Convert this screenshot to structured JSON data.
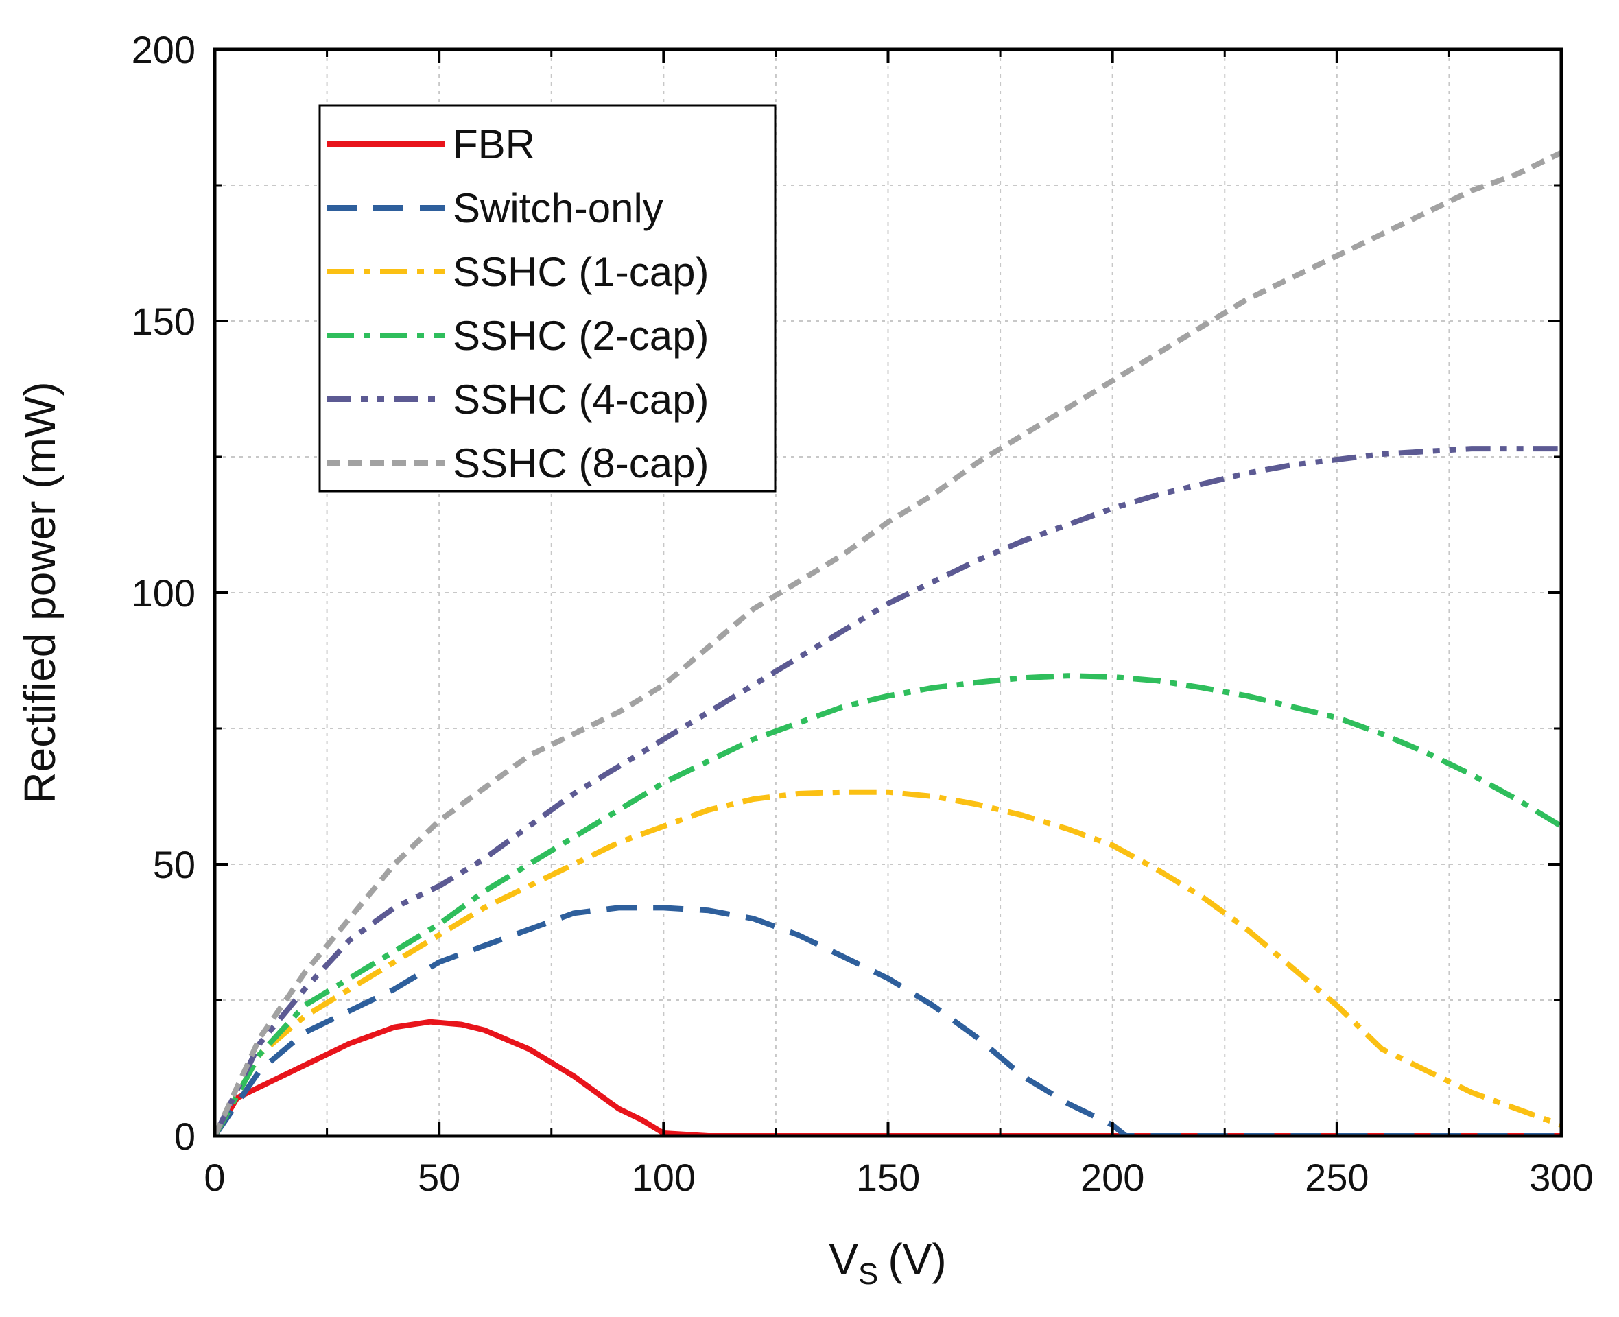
{
  "chart_data": {
    "type": "line",
    "title": "",
    "xlabel": "V",
    "xlabel_sub": "S",
    "xlabel_unit": "(V)",
    "ylabel": "Rectified power (mW)",
    "xlim": [
      0,
      300
    ],
    "ylim": [
      0,
      200
    ],
    "xticks": [
      0,
      50,
      100,
      150,
      200,
      250,
      300
    ],
    "yticks": [
      0,
      50,
      100,
      150,
      200
    ],
    "xtick_labels": [
      "0",
      "50",
      "100",
      "150",
      "200",
      "250",
      "300"
    ],
    "ytick_labels": [
      "0",
      "50",
      "100",
      "150",
      "200"
    ],
    "grid": true,
    "legend_position": "top-left",
    "series": [
      {
        "name": "FBR",
        "color": "#e8141b",
        "style": "solid",
        "points": [
          [
            0,
            0
          ],
          [
            5,
            7
          ],
          [
            10,
            9
          ],
          [
            20,
            13
          ],
          [
            30,
            17
          ],
          [
            40,
            20
          ],
          [
            48,
            21
          ],
          [
            55,
            20.5
          ],
          [
            60,
            19.5
          ],
          [
            70,
            16
          ],
          [
            80,
            11
          ],
          [
            90,
            5
          ],
          [
            95,
            3
          ],
          [
            100,
            0.5
          ],
          [
            110,
            0
          ],
          [
            150,
            0
          ],
          [
            200,
            0
          ],
          [
            250,
            0
          ],
          [
            300,
            0
          ]
        ]
      },
      {
        "name": "Switch-only",
        "color": "#2e5f9c",
        "style": "dashed",
        "points": [
          [
            0,
            0
          ],
          [
            10,
            12
          ],
          [
            20,
            19
          ],
          [
            30,
            23
          ],
          [
            40,
            27
          ],
          [
            50,
            32
          ],
          [
            60,
            35
          ],
          [
            70,
            38
          ],
          [
            80,
            41
          ],
          [
            90,
            42
          ],
          [
            100,
            42
          ],
          [
            110,
            41.5
          ],
          [
            120,
            40
          ],
          [
            130,
            37
          ],
          [
            140,
            33
          ],
          [
            150,
            29
          ],
          [
            160,
            24
          ],
          [
            170,
            18
          ],
          [
            180,
            11
          ],
          [
            190,
            6
          ],
          [
            200,
            2
          ],
          [
            203,
            0
          ],
          [
            250,
            0
          ],
          [
            300,
            0
          ]
        ]
      },
      {
        "name": "SSHC (1-cap)",
        "color": "#fbc013",
        "style": "dashdot",
        "points": [
          [
            0,
            0
          ],
          [
            10,
            15
          ],
          [
            20,
            22
          ],
          [
            30,
            27
          ],
          [
            40,
            32
          ],
          [
            50,
            37
          ],
          [
            60,
            42
          ],
          [
            70,
            46
          ],
          [
            80,
            50
          ],
          [
            90,
            54
          ],
          [
            100,
            57
          ],
          [
            110,
            60
          ],
          [
            120,
            62
          ],
          [
            130,
            63
          ],
          [
            140,
            63.3
          ],
          [
            150,
            63.3
          ],
          [
            160,
            62.5
          ],
          [
            170,
            61
          ],
          [
            180,
            59
          ],
          [
            190,
            56.5
          ],
          [
            200,
            53.5
          ],
          [
            210,
            49
          ],
          [
            220,
            44
          ],
          [
            230,
            38
          ],
          [
            240,
            31
          ],
          [
            250,
            24
          ],
          [
            260,
            16
          ],
          [
            270,
            12
          ],
          [
            280,
            8
          ],
          [
            290,
            5
          ],
          [
            300,
            2
          ]
        ]
      },
      {
        "name": "SSHC (2-cap)",
        "color": "#2fbe5c",
        "style": "dashdot",
        "points": [
          [
            0,
            0
          ],
          [
            10,
            15
          ],
          [
            20,
            24
          ],
          [
            30,
            29
          ],
          [
            40,
            34
          ],
          [
            50,
            39
          ],
          [
            60,
            45
          ],
          [
            70,
            50
          ],
          [
            80,
            55
          ],
          [
            90,
            60
          ],
          [
            100,
            65
          ],
          [
            110,
            69
          ],
          [
            120,
            73
          ],
          [
            130,
            76
          ],
          [
            140,
            79
          ],
          [
            150,
            81
          ],
          [
            160,
            82.5
          ],
          [
            170,
            83.5
          ],
          [
            180,
            84.3
          ],
          [
            190,
            84.7
          ],
          [
            200,
            84.5
          ],
          [
            210,
            83.8
          ],
          [
            220,
            82.5
          ],
          [
            230,
            81
          ],
          [
            240,
            79
          ],
          [
            250,
            77
          ],
          [
            260,
            74
          ],
          [
            270,
            70.5
          ],
          [
            280,
            66.5
          ],
          [
            290,
            62
          ],
          [
            300,
            57
          ]
        ]
      },
      {
        "name": "SSHC (4-cap)",
        "color": "#5c5a93",
        "style": "dashdotdot",
        "points": [
          [
            0,
            0
          ],
          [
            10,
            17
          ],
          [
            20,
            27
          ],
          [
            30,
            36
          ],
          [
            40,
            42
          ],
          [
            50,
            46
          ],
          [
            60,
            51
          ],
          [
            70,
            57
          ],
          [
            80,
            63
          ],
          [
            90,
            68
          ],
          [
            100,
            73
          ],
          [
            110,
            78
          ],
          [
            120,
            83
          ],
          [
            130,
            88
          ],
          [
            140,
            93
          ],
          [
            150,
            98
          ],
          [
            160,
            102
          ],
          [
            170,
            106
          ],
          [
            180,
            109.5
          ],
          [
            190,
            112.5
          ],
          [
            200,
            115.5
          ],
          [
            210,
            118
          ],
          [
            220,
            120
          ],
          [
            230,
            122
          ],
          [
            240,
            123.5
          ],
          [
            250,
            124.5
          ],
          [
            260,
            125.5
          ],
          [
            270,
            126
          ],
          [
            280,
            126.5
          ],
          [
            290,
            126.5
          ],
          [
            300,
            126.5
          ]
        ]
      },
      {
        "name": "SSHC (8-cap)",
        "color": "#a2a2a2",
        "style": "shortdash",
        "points": [
          [
            0,
            0
          ],
          [
            10,
            18
          ],
          [
            20,
            30
          ],
          [
            30,
            40
          ],
          [
            40,
            50
          ],
          [
            50,
            58
          ],
          [
            60,
            64
          ],
          [
            70,
            70
          ],
          [
            80,
            74
          ],
          [
            90,
            78
          ],
          [
            100,
            83
          ],
          [
            110,
            90
          ],
          [
            120,
            97
          ],
          [
            130,
            102
          ],
          [
            140,
            107
          ],
          [
            150,
            113
          ],
          [
            160,
            118
          ],
          [
            170,
            124
          ],
          [
            180,
            129
          ],
          [
            190,
            134
          ],
          [
            200,
            139
          ],
          [
            210,
            144
          ],
          [
            220,
            149
          ],
          [
            230,
            154
          ],
          [
            240,
            158
          ],
          [
            250,
            162
          ],
          [
            260,
            166
          ],
          [
            270,
            170
          ],
          [
            280,
            174
          ],
          [
            290,
            177
          ],
          [
            300,
            181
          ]
        ]
      }
    ]
  }
}
